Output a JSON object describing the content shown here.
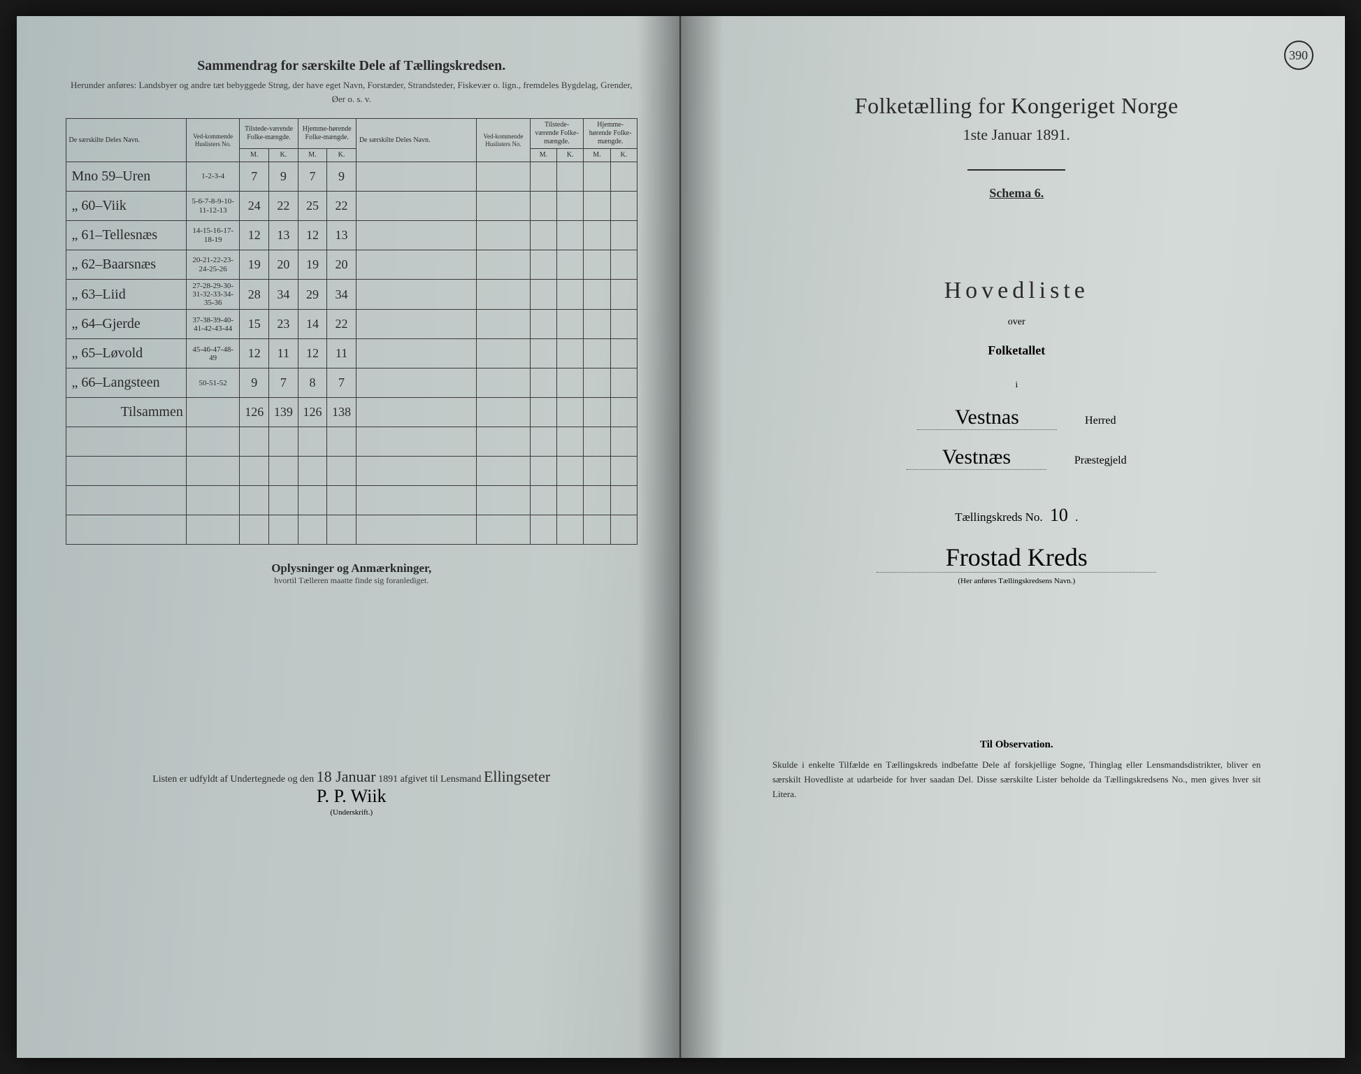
{
  "colors": {
    "ink": "#2a2a2a",
    "paper_left": "#bec7c6",
    "paper_right": "#d0d6d4",
    "background": "#1a1a1a"
  },
  "right_page": {
    "page_number": "390",
    "title": "Folketælling for Kongeriget Norge",
    "date": "1ste Januar 1891.",
    "schema": "Schema 6.",
    "hovedliste": "Hovedliste",
    "over": "over",
    "folketallet": "Folketallet",
    "i": "i",
    "herred_hand": "Vestnas",
    "herred_label": "Herred",
    "praest_hand": "Vestnæs",
    "praest_label": "Præstegjeld",
    "kreds_label_pre": "Tællingskreds No.",
    "kreds_no": "10",
    "kreds_name": "Frostad Kreds",
    "kreds_caption": "(Her anføres Tællingskredsens Navn.)",
    "obs_title": "Til Observation.",
    "obs_text": "Skulde i enkelte Tilfælde en Tællingskreds indbefatte Dele af forskjellige Sogne, Thinglag eller Lensmandsdistrikter, bliver en særskilt Hovedliste at udarbeide for hver saadan Del. Disse særskilte Lister beholde da Tællingskredsens No., men gives hver sit Litera."
  },
  "left_page": {
    "title": "Sammendrag for særskilte Dele af Tællingskredsen.",
    "subtitle": "Herunder anføres: Landsbyer og andre tæt bebyggede Strøg, der have eget Navn, Forstæder, Strandsteder, Fiskevær o. lign., fremdeles Bygdelag, Grender, Øer o. s. v.",
    "headers": {
      "name": "De særskilte Deles Navn.",
      "huslister": "Ved-kommende Huslisters No.",
      "tilstede": "Tilstede-værende Folke-mængde.",
      "hjemme": "Hjemme-hørende Folke-mængde.",
      "m": "M.",
      "k": "K."
    },
    "rows": [
      {
        "name": "Mno 59–Uren",
        "hus": "1-2-3-4",
        "tm": "7",
        "tk": "9",
        "hm": "7",
        "hk": "9"
      },
      {
        "name": "„ 60–Viik",
        "hus": "5-6-7-8-9-10-11-12-13",
        "tm": "24",
        "tk": "22",
        "hm": "25",
        "hk": "22"
      },
      {
        "name": "„ 61–Tellesnæs",
        "hus": "14-15-16-17-18-19",
        "tm": "12",
        "tk": "13",
        "hm": "12",
        "hk": "13"
      },
      {
        "name": "„ 62–Baarsnæs",
        "hus": "20-21-22-23-24-25-26",
        "tm": "19",
        "tk": "20",
        "hm": "19",
        "hk": "20"
      },
      {
        "name": "„ 63–Liid",
        "hus": "27-28-29-30-31-32-33-34-35-36",
        "tm": "28",
        "tk": "34",
        "hm": "29",
        "hk": "34"
      },
      {
        "name": "„ 64–Gjerde",
        "hus": "37-38-39-40-41-42-43-44",
        "tm": "15",
        "tk": "23",
        "hm": "14",
        "hk": "22"
      },
      {
        "name": "„ 65–Løvold",
        "hus": "45-46-47-48-49",
        "tm": "12",
        "tk": "11",
        "hm": "12",
        "hk": "11"
      },
      {
        "name": "„ 66–Langsteen",
        "hus": "50-51-52",
        "tm": "9",
        "tk": "7",
        "hm": "8",
        "hk": "7"
      }
    ],
    "total_label": "Tilsammen",
    "totals": {
      "tm": "126",
      "tk": "139",
      "hm": "126",
      "hk": "138"
    },
    "notes_title": "Oplysninger og Anmærkninger,",
    "notes_sub": "hvortil Tælleren maatte finde sig foranlediget.",
    "footer_pre": "Listen er udfyldt af Undertegnede og den",
    "footer_day": "18 Januar",
    "footer_year": "1891 afgivet til Lensmand",
    "footer_lensmand": "Ellingseter",
    "signature": "P. P. Wiik",
    "sig_caption": "(Underskrift.)"
  }
}
